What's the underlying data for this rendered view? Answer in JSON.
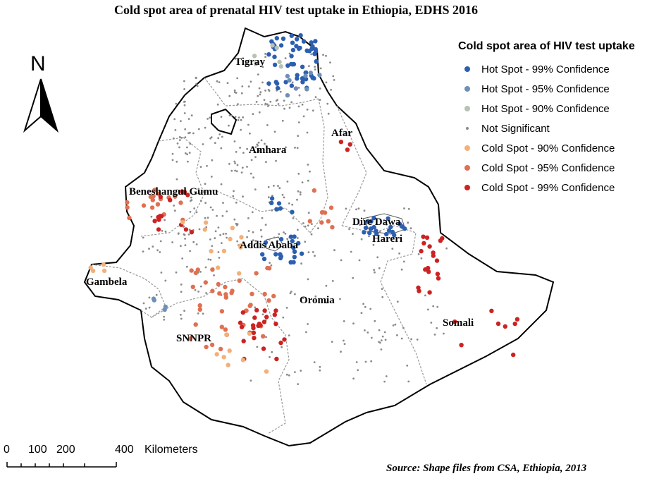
{
  "title": "Cold spot area of prenatal HIV test uptake in Ethiopia, EDHS 2016",
  "north_label": "N",
  "legend": {
    "title": "Cold spot area of HIV test uptake",
    "items": [
      {
        "label": "Hot Spot - 99% Confidence",
        "color": "#2c5fb0"
      },
      {
        "label": "Hot Spot - 95% Confidence",
        "color": "#6f8fba"
      },
      {
        "label": "Hot Spot - 90% Confidence",
        "color": "#b7c2b5"
      },
      {
        "label": "Not Significant",
        "color": "#8a8a8a"
      },
      {
        "label": "Cold Spot - 90% Confidence",
        "color": "#f3b07a"
      },
      {
        "label": "Cold Spot - 95% Confidence",
        "color": "#e07052"
      },
      {
        "label": "Cold Spot - 99% Confidence",
        "color": "#cc2222"
      }
    ]
  },
  "regions": [
    "Tigray",
    "Afar",
    "Amhara",
    "Beneshangul Gumu",
    "Dire Dawa",
    "Hareri",
    "Addis Ababa",
    "Gambela",
    "Oromia",
    "Somali",
    "SNNPR"
  ],
  "scale_bar": {
    "ticks": [
      "0",
      "100",
      "200",
      "400"
    ],
    "unit": "Kilometers"
  },
  "source": "Source: Shape files from CSA, Ethiopia, 2013"
}
